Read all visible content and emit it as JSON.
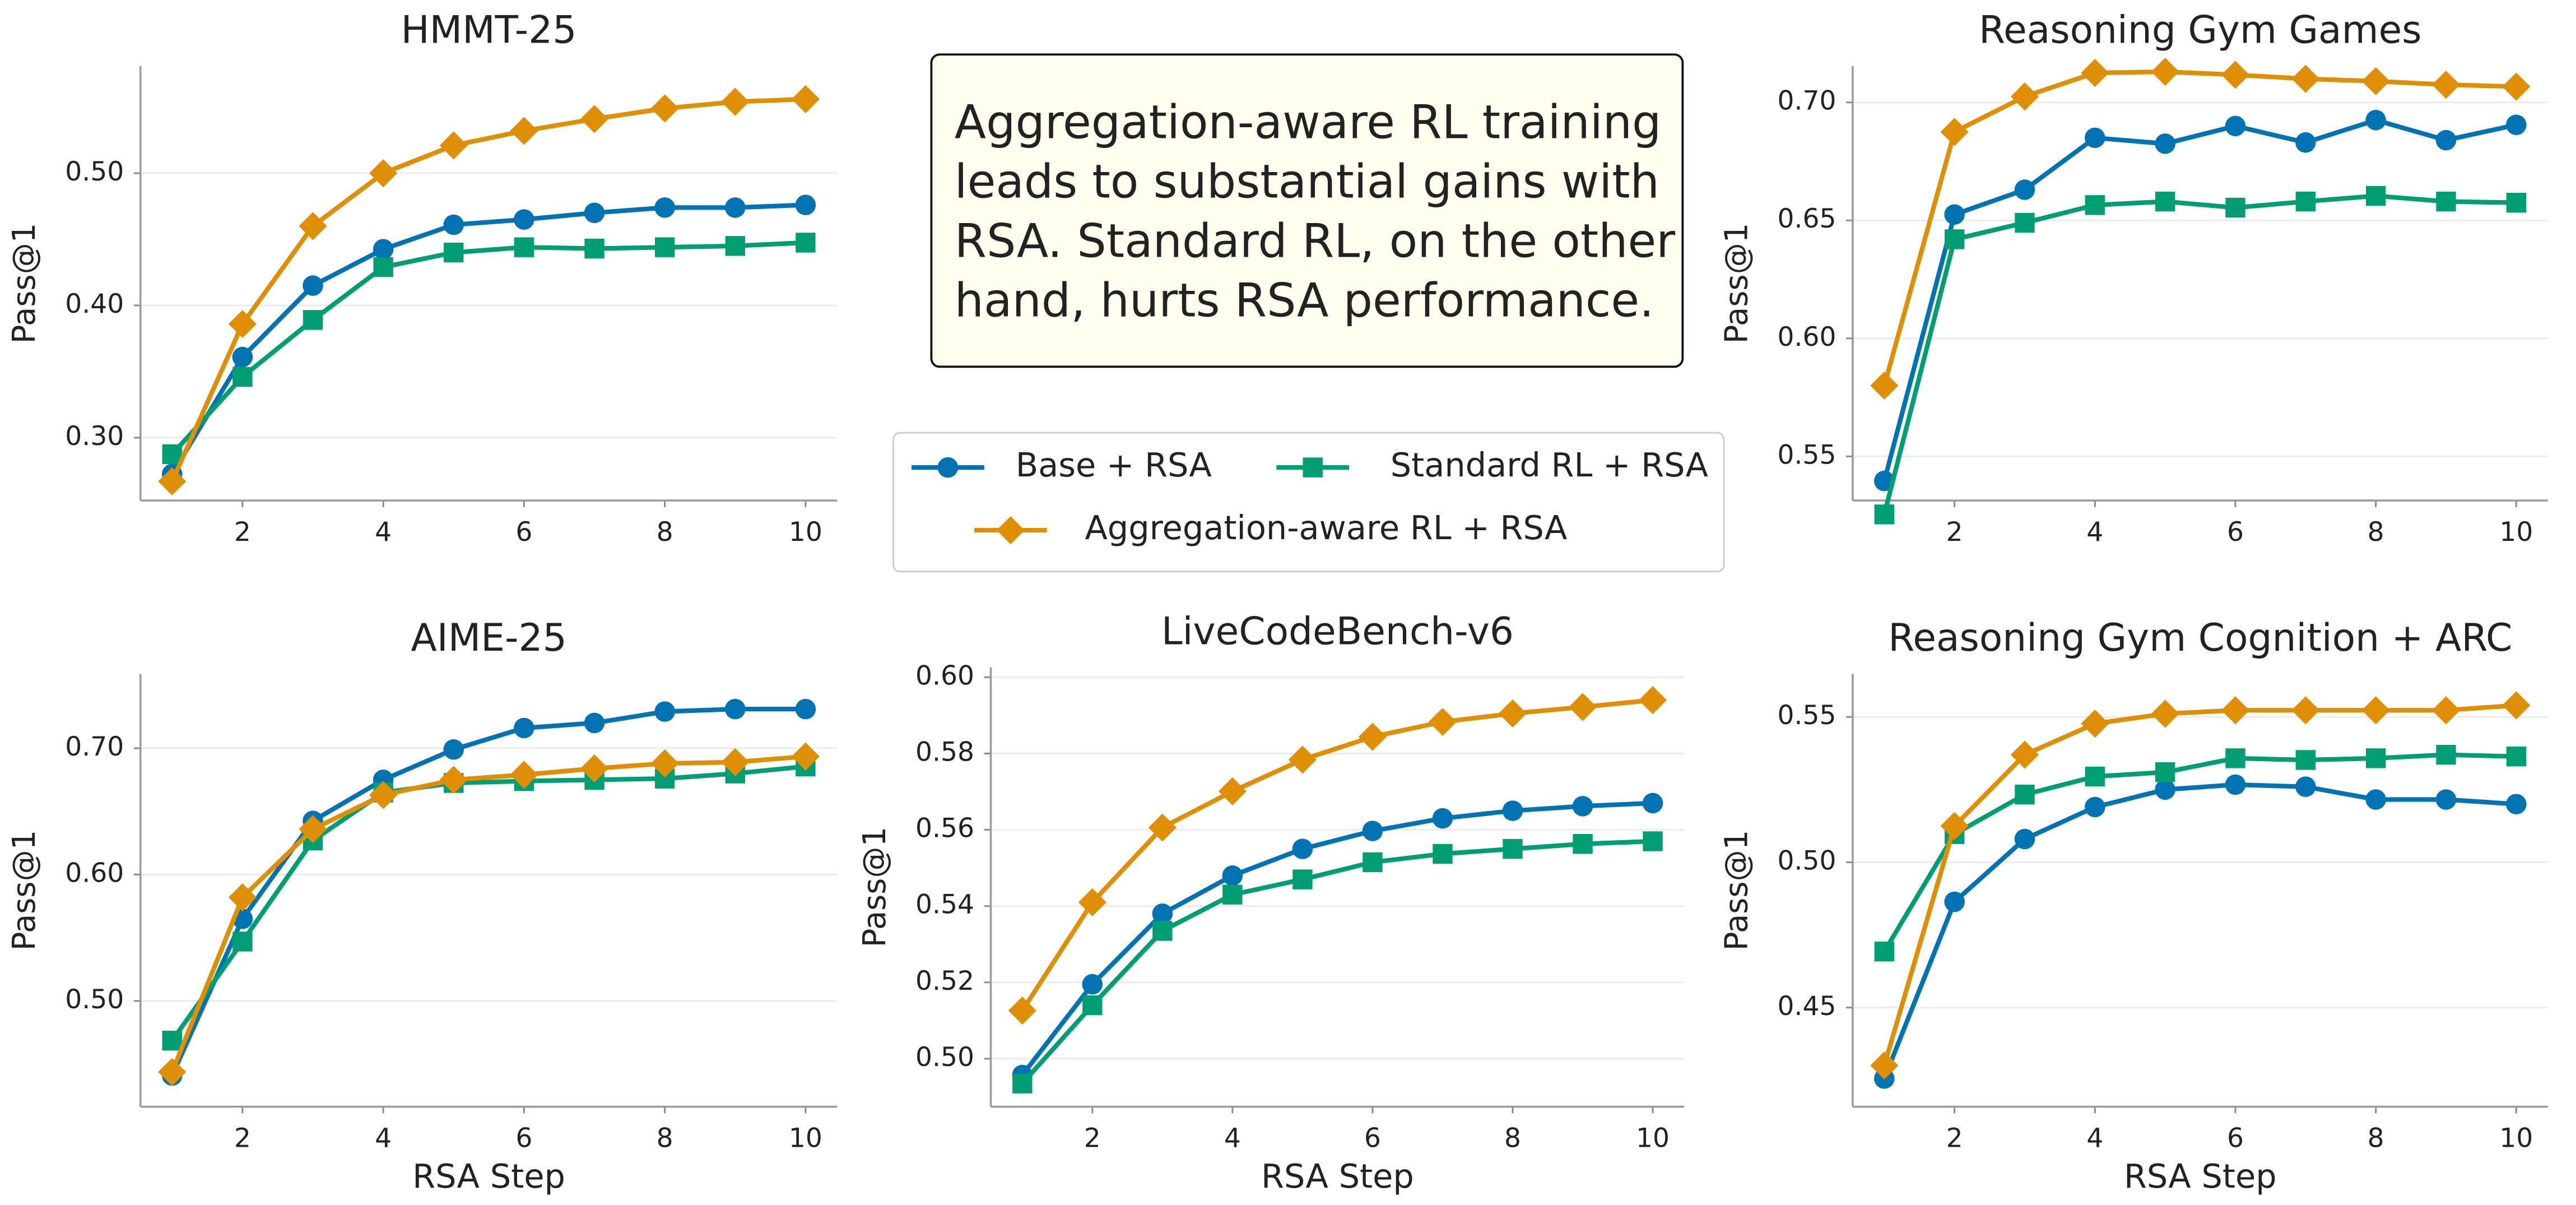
{
  "annotation": {
    "lines": [
      "Aggregation-aware RL training",
      "leads to substantial gains with",
      "RSA. Standard RL, on the other",
      "hand, hurts RSA performance."
    ]
  },
  "legend": {
    "series": [
      {
        "name": "Base + RSA",
        "color": "#0173b2",
        "marker": "circle"
      },
      {
        "name": "Standard RL + RSA",
        "color": "#029e73",
        "marker": "square"
      },
      {
        "name": "Aggregation-aware RL + RSA",
        "color": "#de8f05",
        "marker": "diamond"
      }
    ]
  },
  "chart_data": [
    {
      "type": "line",
      "title": "HMMT-25",
      "y_label": "Pass@1",
      "x": [
        1,
        2,
        3,
        4,
        5,
        6,
        7,
        8,
        9,
        10
      ],
      "xlim": [
        0.55,
        10.45
      ],
      "xticks": [
        2,
        4,
        6,
        8,
        10
      ],
      "ylim": [
        0.2525,
        0.581
      ],
      "yticks": [
        {
          "value": 0.3,
          "label": "0.30"
        },
        {
          "value": 0.4,
          "label": "0.40"
        },
        {
          "value": 0.5,
          "label": "0.50"
        }
      ],
      "grid": true,
      "series": [
        {
          "values": [
            0.2725,
            0.361,
            0.415,
            0.4425,
            0.461,
            0.465,
            0.47,
            0.474,
            0.474,
            0.476
          ]
        },
        {
          "values": [
            0.2875,
            0.346,
            0.389,
            0.429,
            0.44,
            0.444,
            0.443,
            0.444,
            0.445,
            0.4475
          ]
        },
        {
          "values": [
            0.267,
            0.386,
            0.46,
            0.5,
            0.521,
            0.532,
            0.541,
            0.549,
            0.554,
            0.556
          ]
        }
      ]
    },
    {
      "type": "line",
      "title": "Reasoning Gym Games",
      "y_label": "Pass@1",
      "x": [
        1,
        2,
        3,
        4,
        5,
        6,
        7,
        8,
        9,
        10
      ],
      "xlim": [
        0.55,
        10.45
      ],
      "xticks": [
        2,
        4,
        6,
        8,
        10
      ],
      "ylim": [
        0.5313,
        0.7154
      ],
      "yticks": [
        0.55,
        {
          "value": 0.6,
          "label": "0.60"
        },
        0.65,
        {
          "value": 0.7,
          "label": "0.70"
        }
      ],
      "grid": true,
      "series": [
        {
          "values": [
            0.5396,
            0.6525,
            0.663,
            0.685,
            0.6825,
            0.69,
            0.683,
            0.6925,
            0.684,
            0.6905
          ]
        },
        {
          "values": [
            0.5254,
            0.642,
            0.649,
            0.6565,
            0.658,
            0.6554,
            0.658,
            0.6604,
            0.658,
            0.6575
          ]
        },
        {
          "values": [
            0.58,
            0.6875,
            0.7025,
            0.7125,
            0.713,
            0.7117,
            0.71,
            0.709,
            0.7075,
            0.7067
          ]
        }
      ]
    },
    {
      "type": "line",
      "title": "AIME-25",
      "x_label": "RSA Step",
      "y_label": "Pass@1",
      "x": [
        1,
        2,
        3,
        4,
        5,
        6,
        7,
        8,
        9,
        10
      ],
      "xlim": [
        0.55,
        10.45
      ],
      "xticks": [
        2,
        4,
        6,
        8,
        10
      ],
      "ylim": [
        0.4163,
        0.7588
      ],
      "yticks": [
        {
          "value": 0.5,
          "label": "0.50"
        },
        {
          "value": 0.6,
          "label": "0.60"
        },
        {
          "value": 0.7,
          "label": "0.70"
        }
      ],
      "grid": true,
      "series": [
        {
          "values": [
            0.441,
            0.565,
            0.6425,
            0.675,
            0.699,
            0.716,
            0.72,
            0.729,
            0.731,
            0.731
          ]
        },
        {
          "values": [
            0.4686,
            0.547,
            0.627,
            0.665,
            0.6725,
            0.674,
            0.675,
            0.676,
            0.68,
            0.6856
          ]
        },
        {
          "values": [
            0.4438,
            0.582,
            0.636,
            0.663,
            0.675,
            0.679,
            0.684,
            0.688,
            0.689,
            0.6935
          ]
        }
      ]
    },
    {
      "type": "line",
      "title": "LiveCodeBench-v6",
      "x_label": "RSA Step",
      "y_label": "Pass@1",
      "x": [
        1,
        2,
        3,
        4,
        5,
        6,
        7,
        8,
        9,
        10
      ],
      "xlim": [
        0.55,
        10.45
      ],
      "xticks": [
        2,
        4,
        6,
        8,
        10
      ],
      "ylim": [
        0.4874,
        0.6026
      ],
      "yticks": [
        {
          "value": 0.5,
          "label": "0.50"
        },
        0.52,
        0.54,
        0.56,
        0.58,
        {
          "value": 0.6,
          "label": "0.60"
        }
      ],
      "grid": true,
      "series": [
        {
          "values": [
            0.4957,
            0.5195,
            0.538,
            0.548,
            0.555,
            0.5597,
            0.563,
            0.565,
            0.5662,
            0.567
          ]
        },
        {
          "values": [
            0.4935,
            0.514,
            0.5335,
            0.543,
            0.547,
            0.5515,
            0.5537,
            0.555,
            0.5563,
            0.557
          ]
        },
        {
          "values": [
            0.5126,
            0.541,
            0.5606,
            0.5701,
            0.5784,
            0.5844,
            0.5883,
            0.5905,
            0.5922,
            0.594
          ]
        }
      ]
    },
    {
      "type": "line",
      "title": "Reasoning Gym Cognition + ARC",
      "x_label": "RSA Step",
      "y_label": "Pass@1",
      "x": [
        1,
        2,
        3,
        4,
        5,
        6,
        7,
        8,
        9,
        10
      ],
      "xlim": [
        0.55,
        10.45
      ],
      "xticks": [
        2,
        4,
        6,
        8,
        10
      ],
      "ylim": [
        0.4159,
        0.5648
      ],
      "yticks": [
        0.45,
        {
          "value": 0.5,
          "label": "0.50"
        },
        0.55
      ],
      "grid": true,
      "series": [
        {
          "values": [
            0.4256,
            0.4864,
            0.508,
            0.519,
            0.525,
            0.5267,
            0.526,
            0.5216,
            0.5216,
            0.52
          ]
        },
        {
          "values": [
            0.4693,
            0.5097,
            0.5233,
            0.5295,
            0.531,
            0.5358,
            0.5352,
            0.5358,
            0.537,
            0.5364
          ]
        },
        {
          "values": [
            0.4301,
            0.5125,
            0.537,
            0.5477,
            0.5511,
            0.5523,
            0.5523,
            0.5523,
            0.5523,
            0.554
          ]
        }
      ]
    }
  ]
}
